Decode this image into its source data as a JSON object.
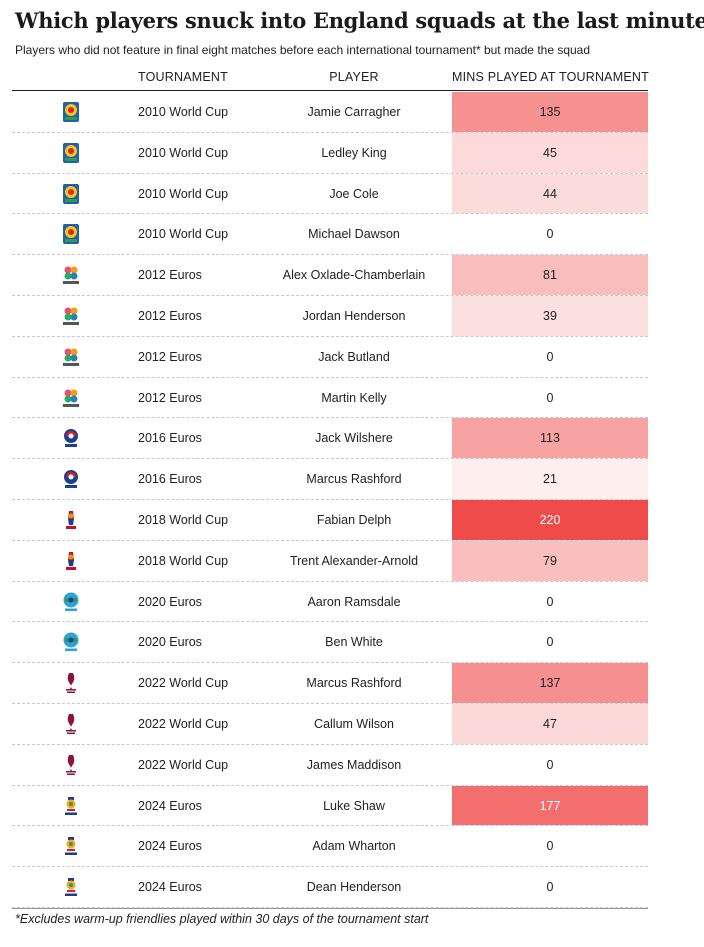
{
  "title": "Which players snuck into England squads at the last minute?",
  "subtitle": "Players who did not feature in final eight matches before each international tournament* but made the squad",
  "footnote": "*Excludes warm-up friendlies played within 30 days of the tournament start",
  "colors": {
    "scale_max": "#f04b4b",
    "scale_min": "#ffffff",
    "text_dark": "#222222",
    "text_light": "#ffffff"
  },
  "chart_data": {
    "type": "table",
    "columns": [
      "TOURNAMENT",
      "PLAYER",
      "MINS PLAYED AT TOURNAMENT"
    ],
    "color_scale": {
      "min": 0,
      "max": 220
    },
    "rows": [
      {
        "tournament": "2010 World Cup",
        "logo": "wc2010-logo",
        "player": "Jamie Carragher",
        "mins": 135
      },
      {
        "tournament": "2010 World Cup",
        "logo": "wc2010-logo",
        "player": "Ledley King",
        "mins": 45
      },
      {
        "tournament": "2010 World Cup",
        "logo": "wc2010-logo",
        "player": "Joe Cole",
        "mins": 44
      },
      {
        "tournament": "2010 World Cup",
        "logo": "wc2010-logo",
        "player": "Michael Dawson",
        "mins": 0
      },
      {
        "tournament": "2012 Euros",
        "logo": "euro2012-logo",
        "player": "Alex Oxlade-Chamberlain",
        "mins": 81
      },
      {
        "tournament": "2012 Euros",
        "logo": "euro2012-logo",
        "player": "Jordan Henderson",
        "mins": 39
      },
      {
        "tournament": "2012 Euros",
        "logo": "euro2012-logo",
        "player": "Jack Butland",
        "mins": 0
      },
      {
        "tournament": "2012 Euros",
        "logo": "euro2012-logo",
        "player": "Martin Kelly",
        "mins": 0
      },
      {
        "tournament": "2016 Euros",
        "logo": "euro2016-logo",
        "player": "Jack Wilshere",
        "mins": 113
      },
      {
        "tournament": "2016 Euros",
        "logo": "euro2016-logo",
        "player": "Marcus Rashford",
        "mins": 21
      },
      {
        "tournament": "2018 World Cup",
        "logo": "wc2018-logo",
        "player": "Fabian Delph",
        "mins": 220
      },
      {
        "tournament": "2018 World Cup",
        "logo": "wc2018-logo",
        "player": "Trent Alexander-Arnold",
        "mins": 79
      },
      {
        "tournament": "2020 Euros",
        "logo": "euro2020-logo",
        "player": "Aaron Ramsdale",
        "mins": 0
      },
      {
        "tournament": "2020 Euros",
        "logo": "euro2020-logo",
        "player": "Ben White",
        "mins": 0
      },
      {
        "tournament": "2022 World Cup",
        "logo": "wc2022-logo",
        "player": "Marcus Rashford",
        "mins": 137
      },
      {
        "tournament": "2022 World Cup",
        "logo": "wc2022-logo",
        "player": "Callum Wilson",
        "mins": 47
      },
      {
        "tournament": "2022 World Cup",
        "logo": "wc2022-logo",
        "player": "James Maddison",
        "mins": 0
      },
      {
        "tournament": "2024 Euros",
        "logo": "euro2024-logo",
        "player": "Luke Shaw",
        "mins": 177
      },
      {
        "tournament": "2024 Euros",
        "logo": "euro2024-logo",
        "player": "Adam Wharton",
        "mins": 0
      },
      {
        "tournament": "2024 Euros",
        "logo": "euro2024-logo",
        "player": "Dean Henderson",
        "mins": 0
      }
    ]
  }
}
